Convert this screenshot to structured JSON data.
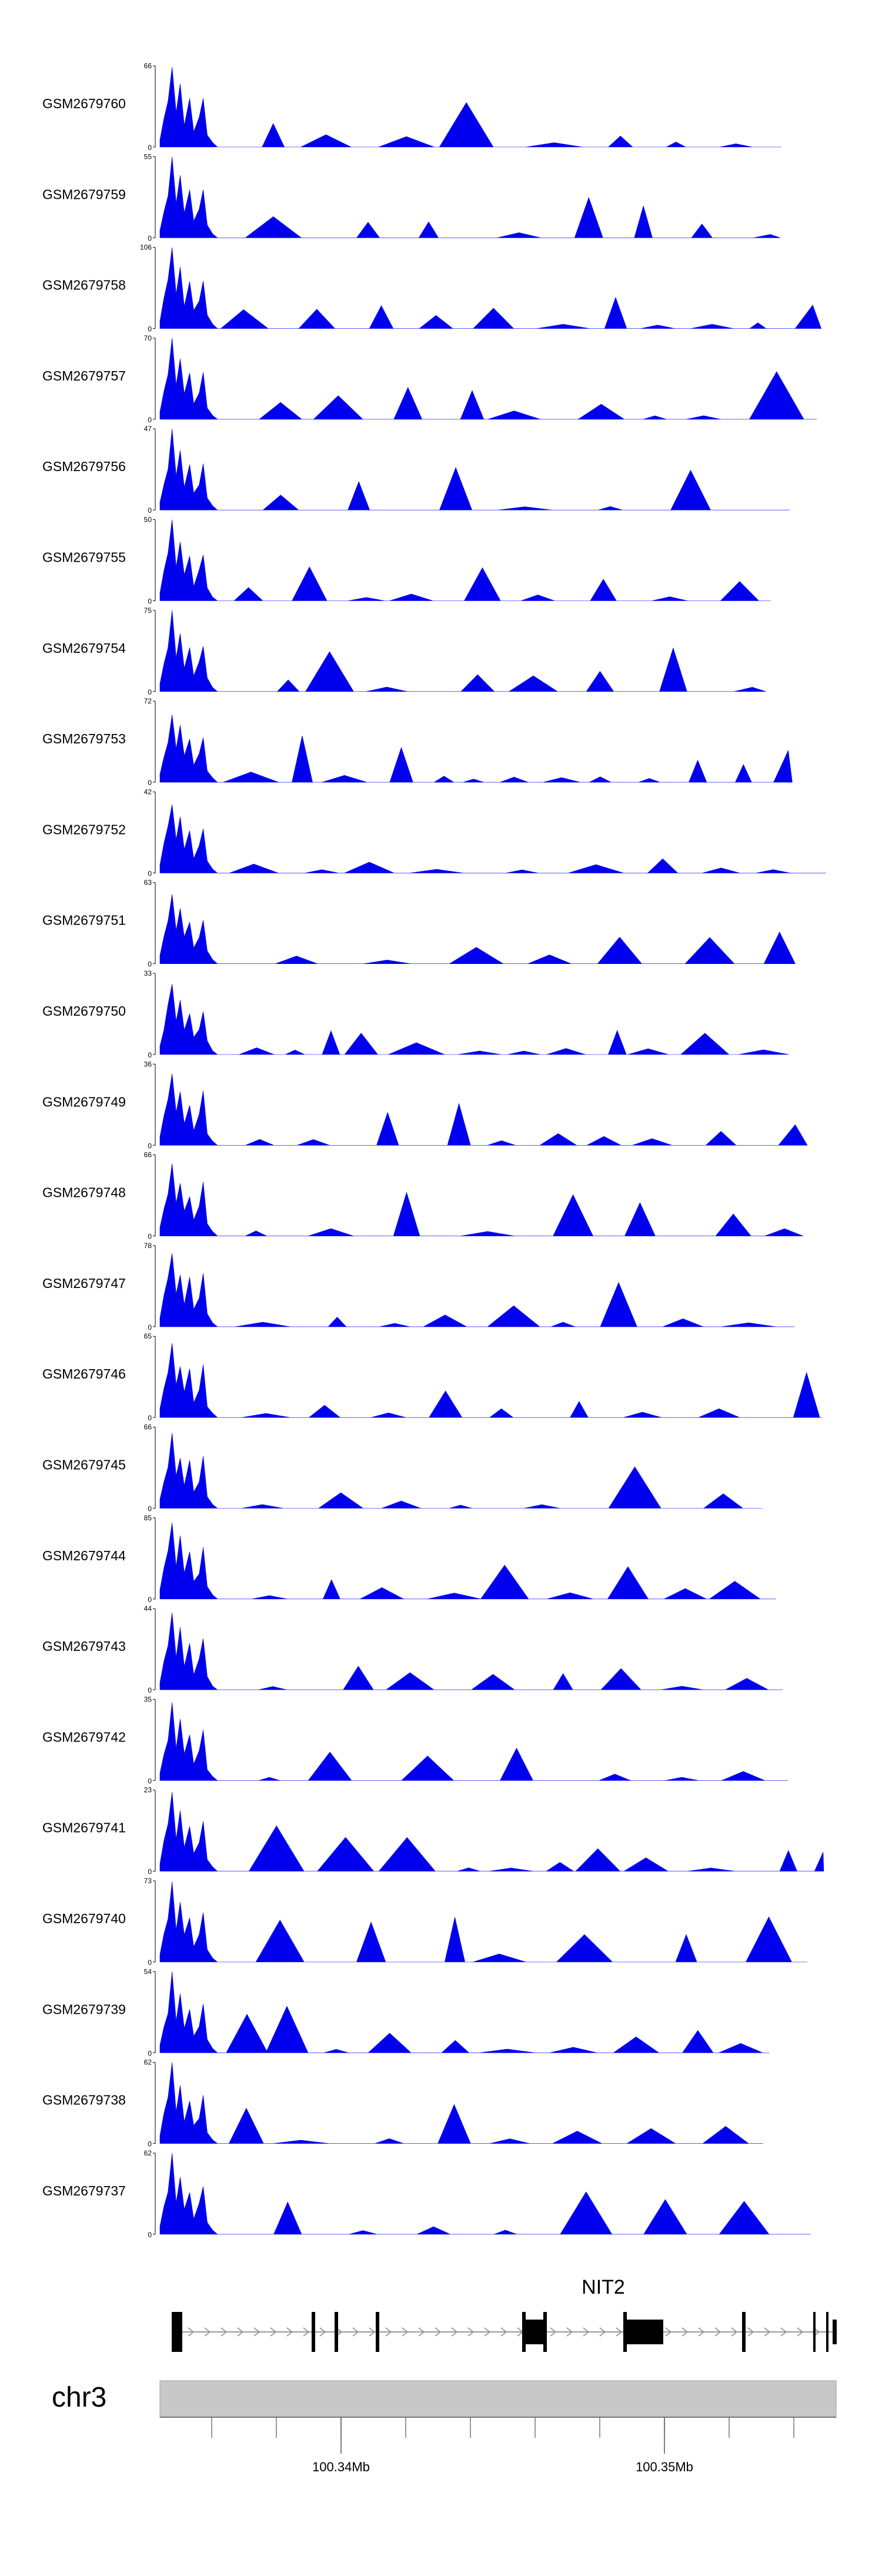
{
  "chart_data": {
    "type": "area",
    "chromosome": "chr3",
    "gene": "NIT2",
    "x_ticks": [
      "100.34Mb",
      "100.35Mb"
    ],
    "tracks": [
      {
        "name": "GSM2679760",
        "max": 66,
        "min": 0
      },
      {
        "name": "GSM2679759",
        "max": 55,
        "min": 0
      },
      {
        "name": "GSM2679758",
        "max": 106,
        "min": 0
      },
      {
        "name": "GSM2679757",
        "max": 70,
        "min": 0
      },
      {
        "name": "GSM2679756",
        "max": 47,
        "min": 0
      },
      {
        "name": "GSM2679755",
        "max": 50,
        "min": 0
      },
      {
        "name": "GSM2679754",
        "max": 75,
        "min": 0
      },
      {
        "name": "GSM2679753",
        "max": 72,
        "min": 0
      },
      {
        "name": "GSM2679752",
        "max": 42,
        "min": 0
      },
      {
        "name": "GSM2679751",
        "max": 63,
        "min": 0
      },
      {
        "name": "GSM2679750",
        "max": 33,
        "min": 0
      },
      {
        "name": "GSM2679749",
        "max": 36,
        "min": 0
      },
      {
        "name": "GSM2679748",
        "max": 66,
        "min": 0
      },
      {
        "name": "GSM2679747",
        "max": 78,
        "min": 0
      },
      {
        "name": "GSM2679746",
        "max": 65,
        "min": 0
      },
      {
        "name": "GSM2679745",
        "max": 66,
        "min": 0
      },
      {
        "name": "GSM2679744",
        "max": 85,
        "min": 0
      },
      {
        "name": "GSM2679743",
        "max": 44,
        "min": 0
      },
      {
        "name": "GSM2679742",
        "max": 35,
        "min": 0
      },
      {
        "name": "GSM2679741",
        "max": 23,
        "min": 0
      },
      {
        "name": "GSM2679740",
        "max": 73,
        "min": 0
      },
      {
        "name": "GSM2679739",
        "max": 54,
        "min": 0
      },
      {
        "name": "GSM2679738",
        "max": 62,
        "min": 0
      },
      {
        "name": "GSM2679737",
        "max": 62,
        "min": 0
      }
    ]
  },
  "colors": {
    "signal": "#0000ee",
    "axis": "#000000",
    "ideogram": "#c8c8c8",
    "gene_model": "#000000",
    "intron": "#999999"
  }
}
